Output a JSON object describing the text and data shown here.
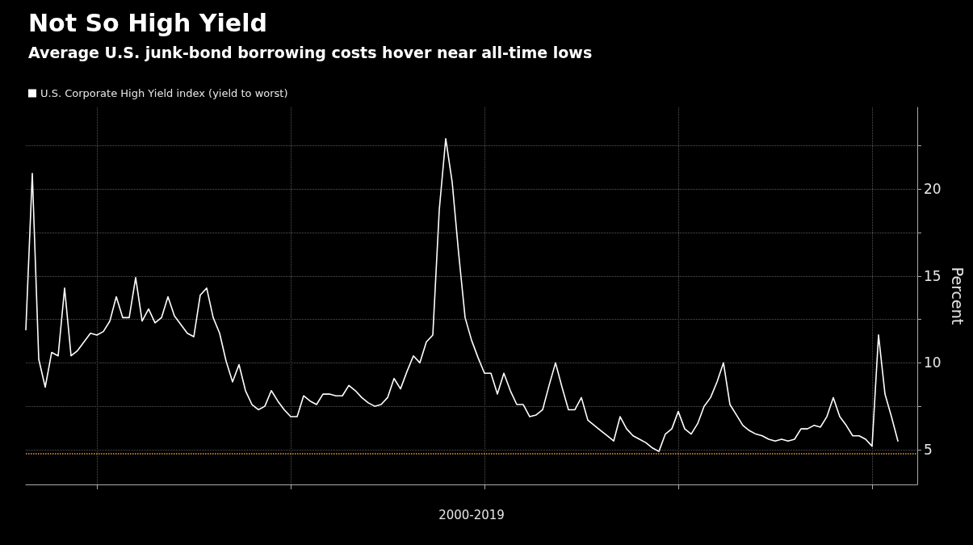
{
  "chart_data": {
    "type": "line",
    "title": "Not So High Yield",
    "subtitle": "Average U.S. junk-bond borrowing costs hover near all-time lows",
    "xlabel": "2000-2019",
    "ylabel": "Percent",
    "categories": [
      null,
      null,
      null,
      null,
      null,
      null,
      null,
      null,
      null,
      null,
      null,
      null,
      null,
      null,
      null,
      null,
      null,
      null,
      null,
      null,
      null,
      null,
      null,
      null,
      null,
      null,
      null,
      null,
      null,
      null,
      null,
      null,
      null,
      null,
      null,
      null,
      null,
      null,
      null,
      null,
      null,
      null,
      null,
      null,
      null,
      null,
      null,
      null,
      null,
      null,
      null,
      null,
      null,
      null,
      null,
      null,
      null,
      null,
      null,
      null,
      null,
      null,
      null,
      null,
      null,
      null,
      null,
      null,
      null,
      null,
      null,
      null,
      null,
      null,
      null,
      null,
      null,
      null,
      null,
      null,
      null,
      null,
      null,
      null,
      null,
      null,
      null,
      null,
      null,
      null,
      null,
      null,
      null,
      null,
      null,
      null,
      null,
      null,
      null,
      null,
      null,
      null,
      null,
      null,
      null,
      null,
      null,
      null,
      null,
      null,
      null,
      null,
      null,
      null,
      null,
      null,
      null,
      null,
      null,
      null,
      null,
      null,
      null,
      null,
      null,
      null,
      null,
      null,
      null,
      null,
      null,
      null,
      null,
      null,
      null,
      null,
      null,
      null,
      null
    ],
    "series": [
      {
        "name": "U.S. Corporate High Yield index (yield to worst)",
        "color": "#ffffff",
        "values": [
          11.9,
          20.9,
          10.2,
          8.6,
          10.6,
          10.4,
          14.3,
          10.4,
          10.7,
          11.2,
          11.7,
          11.6,
          11.8,
          12.4,
          13.8,
          12.6,
          12.6,
          14.9,
          12.4,
          13.1,
          12.3,
          12.6,
          13.8,
          12.7,
          12.2,
          11.7,
          11.5,
          13.9,
          14.3,
          12.6,
          11.7,
          10.1,
          8.9,
          9.9,
          8.4,
          7.6,
          7.3,
          7.5,
          8.4,
          7.8,
          7.3,
          6.9,
          6.9,
          8.1,
          7.8,
          7.6,
          8.2,
          8.2,
          8.1,
          8.1,
          8.7,
          8.4,
          8.0,
          7.7,
          7.5,
          7.6,
          8.0,
          9.1,
          8.5,
          9.5,
          10.4,
          10.0,
          11.2,
          11.6,
          18.8,
          22.9,
          20.4,
          16.3,
          12.6,
          11.3,
          10.3,
          9.4,
          9.4,
          8.2,
          9.4,
          8.4,
          7.6,
          7.6,
          6.9,
          7.0,
          7.3,
          8.7,
          10.0,
          8.6,
          7.3,
          7.3,
          8.0,
          6.7,
          6.4,
          6.1,
          5.8,
          5.5,
          6.9,
          6.2,
          5.8,
          5.6,
          5.4,
          5.1,
          4.9,
          5.9,
          6.2,
          7.2,
          6.2,
          5.9,
          6.5,
          7.5,
          8.0,
          8.9,
          10.0,
          7.6,
          7.0,
          6.4,
          6.1,
          5.9,
          5.8,
          5.6,
          5.5,
          5.6,
          5.5,
          5.6,
          6.2,
          6.2,
          6.4,
          6.3,
          6.9,
          8.0,
          6.9,
          6.4,
          5.8,
          5.8,
          5.6,
          5.2,
          11.6,
          8.2,
          6.9,
          5.5,
          null,
          null,
          null
        ]
      }
    ],
    "ylim": [
      3,
      24.7
    ],
    "yticks": [
      5,
      {
        "value": 7.5,
        "label": null
      },
      10,
      {
        "value": 12.5,
        "label": null
      },
      15,
      {
        "value": 17.5,
        "label": null
      },
      20,
      {
        "value": 22.5,
        "label": null
      }
    ],
    "ref_lines": [
      {
        "axis": "y",
        "value": 4.8,
        "color": "#f0a030",
        "line_style": "dotted"
      }
    ],
    "grid": true,
    "legend": "top left",
    "marker": "none",
    "line_style": "solid"
  }
}
